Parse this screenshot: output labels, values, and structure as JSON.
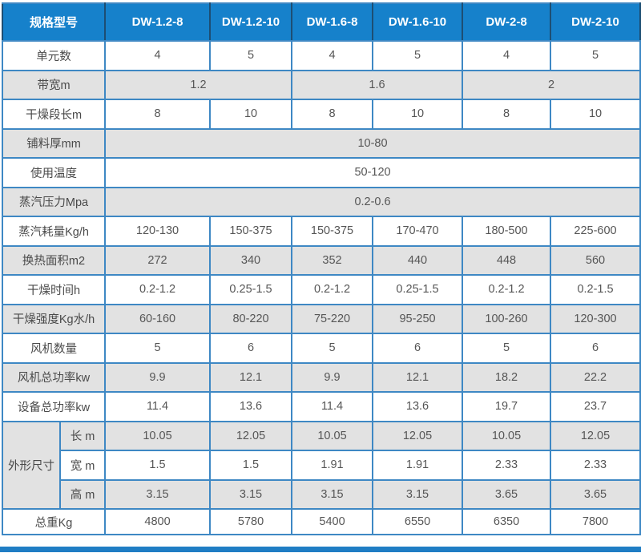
{
  "colors": {
    "header_bg": "#1681cb",
    "header_text": "#ffffff",
    "alt_row_bg": "#e2e2e2",
    "border": "#3e88c4",
    "header_divider": "#1d4e73",
    "body_text": "#565656",
    "bottom_bar": "#1f7dc4"
  },
  "chart_data": {
    "type": "table",
    "title": "",
    "columns": [
      "规格型号",
      "DW-1.2-8",
      "DW-1.2-10",
      "DW-1.6-8",
      "DW-1.6-10",
      "DW-2-8",
      "DW-2-10"
    ],
    "row_order": [
      "unit_count",
      "belt_width",
      "drying_section_length",
      "material_thickness",
      "operating_temperature",
      "steam_pressure",
      "steam_consumption",
      "heat_exchange_area",
      "drying_time",
      "drying_intensity",
      "fan_count",
      "fan_total_power",
      "equipment_total_power",
      "dimensions_length",
      "dimensions_width",
      "dimensions_height",
      "total_weight"
    ],
    "rows": {
      "unit_count": {
        "label": "单元数",
        "values": [
          "4",
          "5",
          "4",
          "5",
          "4",
          "5"
        ]
      },
      "belt_width": {
        "label": "带宽m",
        "values": [
          "1.2",
          "1.6",
          "2"
        ],
        "colspan_per_value": 2
      },
      "drying_section_length": {
        "label": "干燥段长m",
        "values": [
          "8",
          "10",
          "8",
          "10",
          "8",
          "10"
        ]
      },
      "material_thickness": {
        "label": "铺料厚mm",
        "value": "10-80"
      },
      "operating_temperature": {
        "label": "使用温度",
        "value": "50-120"
      },
      "steam_pressure": {
        "label": "蒸汽压力Mpa",
        "value": "0.2-0.6"
      },
      "steam_consumption": {
        "label": "蒸汽耗量Kg/h",
        "values": [
          "120-130",
          "150-375",
          "150-375",
          "170-470",
          "180-500",
          "225-600"
        ]
      },
      "heat_exchange_area": {
        "label": "换热面积m2",
        "values": [
          "272",
          "340",
          "352",
          "440",
          "448",
          "560"
        ]
      },
      "drying_time": {
        "label": "干燥时间h",
        "values": [
          "0.2-1.2",
          "0.25-1.5",
          "0.2-1.2",
          "0.25-1.5",
          "0.2-1.2",
          "0.2-1.5"
        ]
      },
      "drying_intensity": {
        "label": "干燥强度Kg水/h",
        "values": [
          "60-160",
          "80-220",
          "75-220",
          "95-250",
          "100-260",
          "120-300"
        ]
      },
      "fan_count": {
        "label": "风机数量",
        "values": [
          "5",
          "6",
          "5",
          "6",
          "5",
          "6"
        ]
      },
      "fan_total_power": {
        "label": "风机总功率kw",
        "values": [
          "9.9",
          "12.1",
          "9.9",
          "12.1",
          "18.2",
          "22.2"
        ]
      },
      "equipment_total_power": {
        "label": "设备总功率kw",
        "values": [
          "11.4",
          "13.6",
          "11.4",
          "13.6",
          "19.7",
          "23.7"
        ]
      },
      "dimensions_group_label": "外形尺寸",
      "dimensions_length": {
        "label": "长 m",
        "values": [
          "10.05",
          "12.05",
          "10.05",
          "12.05",
          "10.05",
          "12.05"
        ]
      },
      "dimensions_width": {
        "label": "宽 m",
        "values": [
          "1.5",
          "1.5",
          "1.91",
          "1.91",
          "2.33",
          "2.33"
        ]
      },
      "dimensions_height": {
        "label": "高 m",
        "values": [
          "3.15",
          "3.15",
          "3.15",
          "3.15",
          "3.65",
          "3.65"
        ]
      },
      "total_weight": {
        "label": "总重Kg",
        "values": [
          "4800",
          "5780",
          "5400",
          "6550",
          "6350",
          "7800"
        ]
      }
    }
  }
}
